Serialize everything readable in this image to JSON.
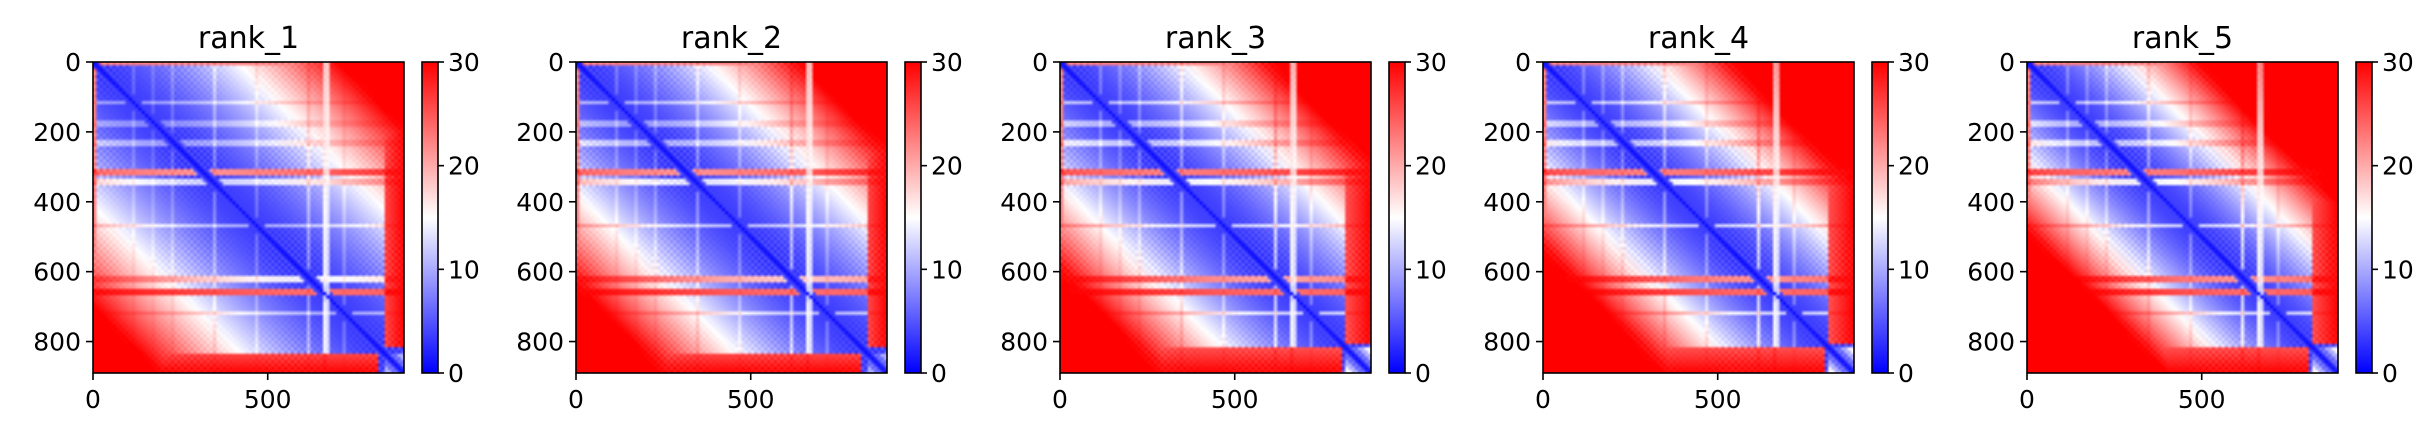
{
  "chart_data": [
    {
      "type": "heatmap",
      "title": "rank_1",
      "x_ticks": [
        0,
        500
      ],
      "y_ticks": [
        0,
        200,
        400,
        600,
        800
      ],
      "xlim": [
        0,
        890
      ],
      "ylim": [
        890,
        0
      ],
      "colorbar": {
        "ticks": [
          0,
          10,
          20,
          30
        ],
        "range": [
          0,
          30
        ],
        "colormap": "bwr"
      },
      "features": {
        "bands": [
          115,
          175,
          230,
          315,
          345,
          470,
          620,
          660,
          720
        ],
        "band_strength": [
          0.25,
          0.2,
          0.25,
          0.85,
          0.4,
          0.3,
          0.5,
          0.95,
          0.3
        ],
        "vertical_stripe": 668,
        "blue_boundary": 830,
        "spread": 0.55
      }
    },
    {
      "type": "heatmap",
      "title": "rank_2",
      "x_ticks": [
        0,
        500
      ],
      "y_ticks": [
        0,
        200,
        400,
        600,
        800
      ],
      "xlim": [
        0,
        890
      ],
      "ylim": [
        890,
        0
      ],
      "colorbar": {
        "ticks": [
          0,
          10,
          20,
          30
        ],
        "range": [
          0,
          30
        ],
        "colormap": "bwr"
      },
      "features": {
        "bands": [
          115,
          175,
          230,
          315,
          345,
          470,
          620,
          660,
          720
        ],
        "band_strength": [
          0.3,
          0.25,
          0.3,
          0.85,
          0.45,
          0.35,
          0.7,
          0.95,
          0.35
        ],
        "vertical_stripe": 668,
        "blue_boundary": 830,
        "spread": 0.5
      }
    },
    {
      "type": "heatmap",
      "title": "rank_3",
      "x_ticks": [
        0,
        500
      ],
      "y_ticks": [
        0,
        200,
        400,
        600,
        800
      ],
      "xlim": [
        0,
        890
      ],
      "ylim": [
        890,
        0
      ],
      "colorbar": {
        "ticks": [
          0,
          10,
          20,
          30
        ],
        "range": [
          0,
          30
        ],
        "colormap": "bwr"
      },
      "features": {
        "bands": [
          115,
          175,
          230,
          315,
          345,
          470,
          620,
          660,
          720
        ],
        "band_strength": [
          0.35,
          0.3,
          0.35,
          0.9,
          0.5,
          0.4,
          0.8,
          0.95,
          0.4
        ],
        "vertical_stripe": 668,
        "blue_boundary": 820,
        "spread": 0.47
      }
    },
    {
      "type": "heatmap",
      "title": "rank_4",
      "x_ticks": [
        0,
        500
      ],
      "y_ticks": [
        0,
        200,
        400,
        600,
        800
      ],
      "xlim": [
        0,
        890
      ],
      "ylim": [
        890,
        0
      ],
      "colorbar": {
        "ticks": [
          0,
          10,
          20,
          30
        ],
        "range": [
          0,
          30
        ],
        "colormap": "bwr"
      },
      "features": {
        "bands": [
          115,
          175,
          230,
          315,
          345,
          470,
          620,
          660,
          720
        ],
        "band_strength": [
          0.35,
          0.3,
          0.35,
          0.9,
          0.5,
          0.4,
          0.85,
          0.95,
          0.4
        ],
        "vertical_stripe": 668,
        "blue_boundary": 820,
        "spread": 0.42
      }
    },
    {
      "type": "heatmap",
      "title": "rank_5",
      "x_ticks": [
        0,
        500
      ],
      "y_ticks": [
        0,
        200,
        400,
        600,
        800
      ],
      "xlim": [
        0,
        890
      ],
      "ylim": [
        890,
        0
      ],
      "colorbar": {
        "ticks": [
          0,
          10,
          20,
          30
        ],
        "range": [
          0,
          30
        ],
        "colormap": "bwr"
      },
      "features": {
        "bands": [
          115,
          175,
          230,
          315,
          345,
          470,
          620,
          660,
          720
        ],
        "band_strength": [
          0.35,
          0.3,
          0.35,
          0.9,
          0.5,
          0.4,
          0.85,
          0.95,
          0.4
        ],
        "vertical_stripe": 668,
        "blue_boundary": 820,
        "spread": 0.38
      }
    }
  ]
}
